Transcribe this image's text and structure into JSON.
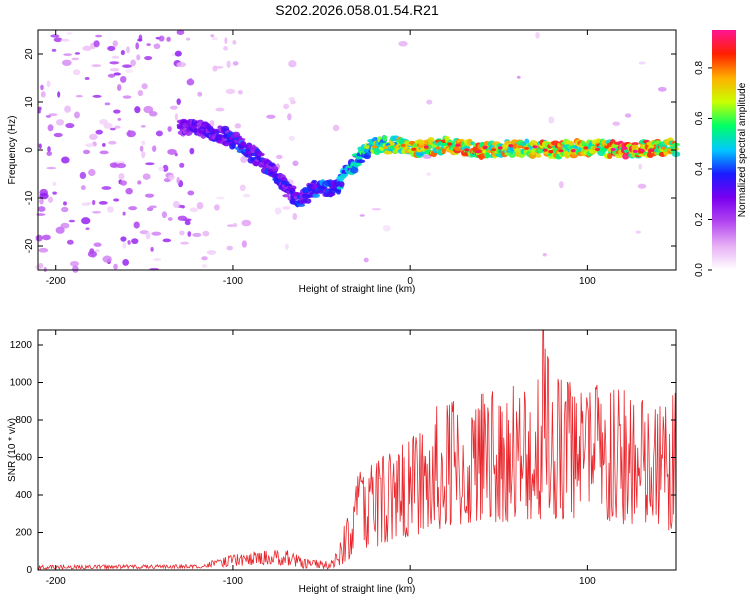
{
  "title": "S202.2026.058.01.54.R21",
  "chart_data": [
    {
      "type": "heatmap",
      "title": "S202.2026.058.01.54.R21",
      "xlabel": "Height of straight line (km)",
      "ylabel": "Frequency (Hz)",
      "xlim": [
        -210,
        150
      ],
      "ylim": [
        -25,
        25
      ],
      "xticks": [
        -200,
        -100,
        0,
        100
      ],
      "xtick_labels": [
        "-200",
        "-100",
        "0",
        "100"
      ],
      "yticks": [
        -20,
        -10,
        0,
        10,
        20
      ],
      "ytick_labels": [
        "-20",
        "-10",
        "0",
        "10",
        "20"
      ],
      "colorbar": {
        "label": "Normalized spectral amplitude",
        "range": [
          0,
          0.95
        ],
        "ticks": [
          0.0,
          0.2,
          0.4,
          0.6,
          0.8
        ],
        "tick_labels": [
          "0.0",
          "0.2",
          "0.4",
          "0.6",
          "0.8"
        ],
        "colors": [
          "#ffffff",
          "#e8b0f5",
          "#b347f0",
          "#7a00f0",
          "#1a1aff",
          "#00c8ff",
          "#00ff66",
          "#c8ff00",
          "#ffb000",
          "#ff2000",
          "#ff1493"
        ]
      },
      "ridge": {
        "x": [
          -200,
          -180,
          -160,
          -140,
          -125,
          -115,
          -105,
          -95,
          -85,
          -75,
          -70,
          -65,
          -60,
          -55,
          -50,
          -45,
          -40,
          -35,
          -30,
          -25,
          -20,
          -15,
          -10,
          -5,
          0,
          20,
          40,
          60,
          80,
          100,
          120,
          140,
          150
        ],
        "y": [
          5,
          4,
          3,
          4,
          5,
          4,
          3,
          1,
          -2,
          -5,
          -8,
          -10,
          -10,
          -8,
          -8,
          -8,
          -7,
          -4,
          -2,
          0,
          1,
          1,
          1,
          1,
          0,
          1,
          0,
          0.5,
          0,
          0.5,
          0,
          0.5,
          0.5
        ],
        "amplitude": [
          0.2,
          0.3,
          0.4,
          0.3,
          0.3,
          0.35,
          0.35,
          0.4,
          0.35,
          0.4,
          0.35,
          0.35,
          0.4,
          0.4,
          0.45,
          0.4,
          0.45,
          0.5,
          0.55,
          0.6,
          0.65,
          0.7,
          0.7,
          0.75,
          0.75,
          0.8,
          0.8,
          0.75,
          0.8,
          0.75,
          0.9,
          0.8,
          0.75
        ]
      }
    },
    {
      "type": "line",
      "xlabel": "Height of straight line (km)",
      "ylabel": "SNR (10 * v/v)",
      "xlim": [
        -210,
        150
      ],
      "ylim": [
        0,
        1280
      ],
      "xticks": [
        -200,
        -100,
        0,
        100
      ],
      "xtick_labels": [
        "-200",
        "-100",
        "0",
        "100"
      ],
      "yticks": [
        0,
        200,
        400,
        600,
        800,
        1000,
        1200
      ],
      "ytick_labels": [
        "0",
        "200",
        "400",
        "600",
        "800",
        "1000",
        "1200"
      ],
      "color": "#e8262b",
      "envelope": {
        "x": [
          -210,
          -120,
          -110,
          -100,
          -90,
          -80,
          -70,
          -60,
          -45,
          -40,
          -35,
          -30,
          -20,
          -10,
          0,
          10,
          20,
          40,
          60,
          75,
          80,
          100,
          120,
          140,
          150
        ],
        "low": [
          5,
          10,
          15,
          20,
          25,
          30,
          25,
          10,
          5,
          20,
          50,
          80,
          120,
          160,
          180,
          200,
          220,
          250,
          260,
          270,
          260,
          250,
          240,
          220,
          200
        ],
        "high": [
          25,
          30,
          55,
          80,
          95,
          110,
          115,
          60,
          50,
          130,
          330,
          520,
          600,
          660,
          700,
          850,
          900,
          950,
          1000,
          1280,
          1050,
          1000,
          980,
          900,
          950
        ]
      }
    }
  ]
}
